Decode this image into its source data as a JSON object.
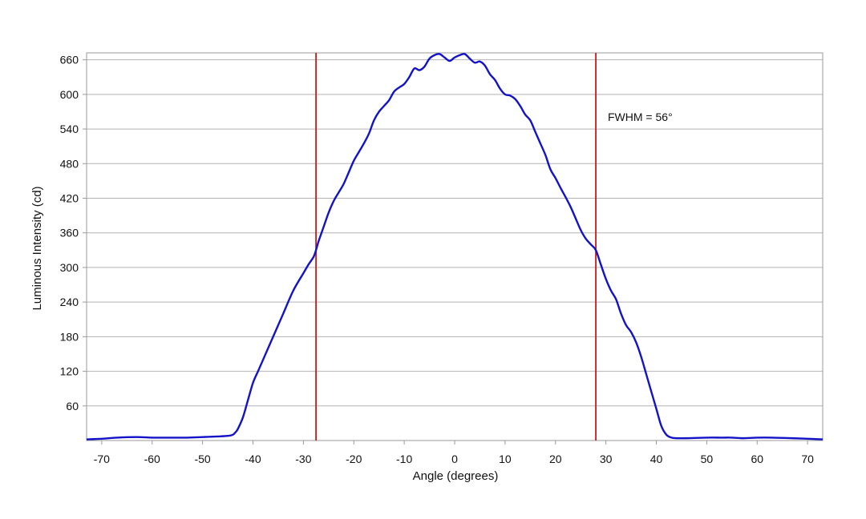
{
  "chart_data": {
    "type": "line",
    "title": "",
    "xlabel": "Angle (degrees)",
    "ylabel": "Luminous Intensity (cd)",
    "xlim": [
      -73,
      73
    ],
    "ylim": [
      0,
      672
    ],
    "xticks": [
      -70,
      -60,
      -50,
      -40,
      -30,
      -20,
      -10,
      0,
      10,
      20,
      30,
      40,
      50,
      60,
      70
    ],
    "yticks": [
      60,
      120,
      180,
      240,
      300,
      360,
      420,
      480,
      540,
      600,
      660
    ],
    "grid": "horizontal",
    "line_color": "#1212c8",
    "marker_color": "#cc1a1a",
    "series": [
      {
        "x": [
          -73,
          -70,
          -67,
          -63,
          -60,
          -57,
          -53,
          -50,
          -47,
          -45,
          -44,
          -43.5,
          -43,
          -42,
          -41,
          -40,
          -39,
          -38,
          -36,
          -34,
          -32,
          -30,
          -29,
          -28,
          -27.5,
          -27,
          -26,
          -25,
          -24,
          -23,
          -22,
          -21,
          -20,
          -19,
          -18,
          -17,
          -16,
          -15,
          -14,
          -13,
          -12,
          -11,
          -10,
          -9,
          -8,
          -7,
          -6,
          -5,
          -4,
          -3,
          -2,
          -1,
          0,
          1,
          2,
          3,
          4,
          5,
          6,
          7,
          8,
          9,
          10,
          11,
          12,
          13,
          14,
          15,
          16,
          17,
          18,
          19,
          20,
          21,
          22,
          23,
          24,
          25,
          26,
          27,
          28,
          29,
          30,
          31,
          32,
          33,
          34,
          35,
          36,
          37,
          38,
          39,
          40,
          41,
          42,
          43,
          44,
          46,
          50,
          53,
          55,
          57,
          60,
          63,
          67,
          70,
          73
        ],
        "y": [
          2,
          3,
          5,
          6,
          5,
          5,
          5,
          6,
          7,
          8,
          10,
          14,
          20,
          40,
          70,
          100,
          120,
          140,
          180,
          220,
          260,
          290,
          305,
          318,
          330,
          345,
          370,
          395,
          415,
          430,
          445,
          465,
          485,
          500,
          515,
          532,
          555,
          570,
          580,
          590,
          605,
          612,
          618,
          630,
          645,
          642,
          648,
          662,
          668,
          670,
          664,
          658,
          664,
          668,
          670,
          662,
          655,
          657,
          650,
          635,
          625,
          610,
          600,
          598,
          592,
          580,
          565,
          555,
          535,
          515,
          495,
          470,
          455,
          438,
          422,
          405,
          385,
          365,
          350,
          340,
          330,
          305,
          280,
          260,
          245,
          220,
          200,
          188,
          170,
          145,
          115,
          85,
          55,
          25,
          10,
          5,
          4,
          4,
          5,
          5,
          5,
          4,
          5,
          5,
          4,
          3,
          2
        ]
      }
    ],
    "vlines": [
      -27.5,
      28
    ],
    "annotation": "FWHM = 56°"
  }
}
